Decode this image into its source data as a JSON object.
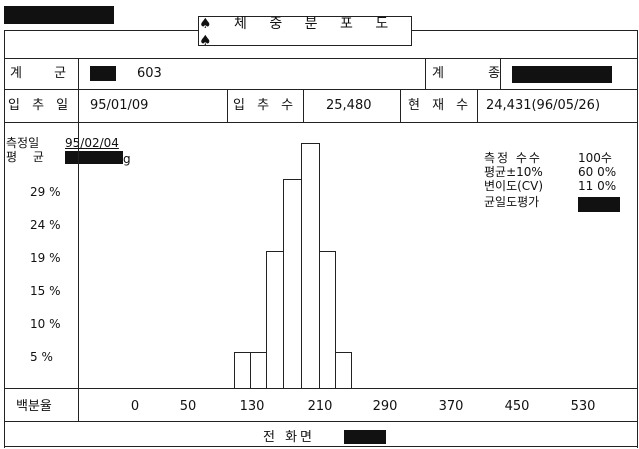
{
  "header": {
    "title": "♠ 체 중 분 포 도 ♠"
  },
  "info": {
    "group_label": "계 군",
    "group_value": "603",
    "breed_label": "계 종",
    "entry_date_label": "입 추 일",
    "entry_date_value": "95/01/09",
    "entry_count_label": "입 추 수",
    "entry_count_value": "25,480",
    "current_count_label": "현 재 수",
    "current_count_value": "24,431(96/05/26)"
  },
  "measure": {
    "date_label": "측정일",
    "date_value": "95/02/04",
    "avg_label": "평 균",
    "avg_unit": "g"
  },
  "stats": {
    "count_label": "측정 수수",
    "count_value": "100수",
    "range_label": "평균±10%",
    "range_value": "60 0%",
    "cv_label": "변이도(CV)",
    "cv_value": "11 0%",
    "uniformity_label": "균일도평가"
  },
  "footer": {
    "phone_label": "전 화면"
  },
  "colors": {
    "ink": "#111111",
    "background": "#ffffff"
  },
  "chart_data": {
    "type": "bar",
    "x_tick_labels": [
      "0",
      "50",
      "130",
      "210",
      "290",
      "370",
      "450",
      "530"
    ],
    "y_tick_labels": [
      "29 %",
      "24 %",
      "19 %",
      "15 %",
      "10 %",
      "5 %"
    ],
    "xlabel": "백분율",
    "bars": [
      {
        "bin": 1,
        "value": 5
      },
      {
        "bin": 2,
        "value": 5
      },
      {
        "bin": 3,
        "value": 19
      },
      {
        "bin": 4,
        "value": 29
      },
      {
        "bin": 5,
        "value": 34
      },
      {
        "bin": 6,
        "value": 19
      },
      {
        "bin": 7,
        "value": 5
      }
    ]
  }
}
